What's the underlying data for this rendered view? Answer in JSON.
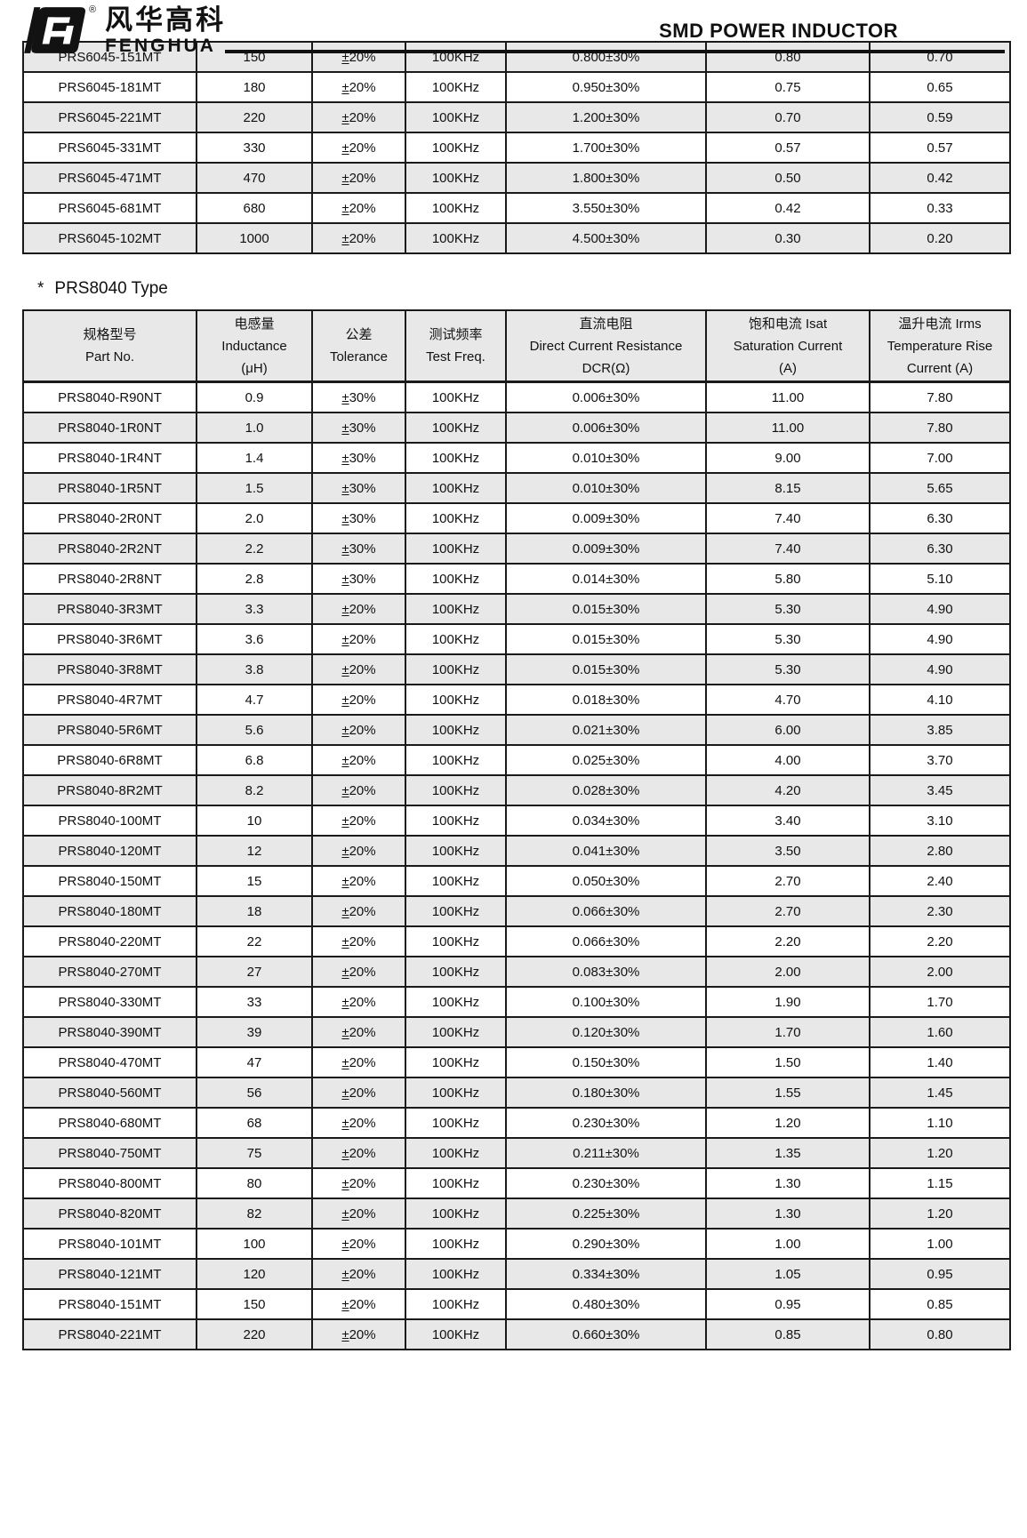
{
  "header": {
    "brand_cn": "风华高科",
    "brand_en": "FENGHUA",
    "registered": "®",
    "title": "SMD POWER INDUCTOR"
  },
  "section": {
    "marker": "*",
    "title": "PRS8040 Type"
  },
  "prs6045": {
    "rows": [
      [
        "PRS6045-151MT",
        "150",
        "±20%",
        "100KHz",
        "0.800±30%",
        "0.80",
        "0.70"
      ],
      [
        "PRS6045-181MT",
        "180",
        "±20%",
        "100KHz",
        "0.950±30%",
        "0.75",
        "0.65"
      ],
      [
        "PRS6045-221MT",
        "220",
        "±20%",
        "100KHz",
        "1.200±30%",
        "0.70",
        "0.59"
      ],
      [
        "PRS6045-331MT",
        "330",
        "±20%",
        "100KHz",
        "1.700±30%",
        "0.57",
        "0.57"
      ],
      [
        "PRS6045-471MT",
        "470",
        "±20%",
        "100KHz",
        "1.800±30%",
        "0.50",
        "0.42"
      ],
      [
        "PRS6045-681MT",
        "680",
        "±20%",
        "100KHz",
        "3.550±30%",
        "0.42",
        "0.33"
      ],
      [
        "PRS6045-102MT",
        "1000",
        "±20%",
        "100KHz",
        "4.500±30%",
        "0.30",
        "0.20"
      ]
    ]
  },
  "prs8040": {
    "columns": [
      {
        "cn": "规格型号",
        "en": "Part No.",
        "sub": ""
      },
      {
        "cn": "电感量",
        "en": "Inductance",
        "sub": "(μH)"
      },
      {
        "cn": "公差",
        "en": "Tolerance",
        "sub": ""
      },
      {
        "cn": "测试频率",
        "en": "Test Freq.",
        "sub": ""
      },
      {
        "cn": "直流电阻",
        "en": "Direct Current Resistance",
        "sub": "DCR(Ω)"
      },
      {
        "cn": "饱和电流  Isat",
        "en": "Saturation Current",
        "sub": "(A)"
      },
      {
        "cn": "温升电流  Irms",
        "en": "Temperature Rise",
        "sub": "Current (A)"
      }
    ],
    "rows": [
      [
        "PRS8040-R90NT",
        "0.9",
        "±30%",
        "100KHz",
        "0.006±30%",
        "11.00",
        "7.80"
      ],
      [
        "PRS8040-1R0NT",
        "1.0",
        "±30%",
        "100KHz",
        "0.006±30%",
        "11.00",
        "7.80"
      ],
      [
        "PRS8040-1R4NT",
        "1.4",
        "±30%",
        "100KHz",
        "0.010±30%",
        "9.00",
        "7.00"
      ],
      [
        "PRS8040-1R5NT",
        "1.5",
        "±30%",
        "100KHz",
        "0.010±30%",
        "8.15",
        "5.65"
      ],
      [
        "PRS8040-2R0NT",
        "2.0",
        "±30%",
        "100KHz",
        "0.009±30%",
        "7.40",
        "6.30"
      ],
      [
        "PRS8040-2R2NT",
        "2.2",
        "±30%",
        "100KHz",
        "0.009±30%",
        "7.40",
        "6.30"
      ],
      [
        "PRS8040-2R8NT",
        "2.8",
        "±30%",
        "100KHz",
        "0.014±30%",
        "5.80",
        "5.10"
      ],
      [
        "PRS8040-3R3MT",
        "3.3",
        "±20%",
        "100KHz",
        "0.015±30%",
        "5.30",
        "4.90"
      ],
      [
        "PRS8040-3R6MT",
        "3.6",
        "±20%",
        "100KHz",
        "0.015±30%",
        "5.30",
        "4.90"
      ],
      [
        "PRS8040-3R8MT",
        "3.8",
        "±20%",
        "100KHz",
        "0.015±30%",
        "5.30",
        "4.90"
      ],
      [
        "PRS8040-4R7MT",
        "4.7",
        "±20%",
        "100KHz",
        "0.018±30%",
        "4.70",
        "4.10"
      ],
      [
        "PRS8040-5R6MT",
        "5.6",
        "±20%",
        "100KHz",
        "0.021±30%",
        "6.00",
        "3.85"
      ],
      [
        "PRS8040-6R8MT",
        "6.8",
        "±20%",
        "100KHz",
        "0.025±30%",
        "4.00",
        "3.70"
      ],
      [
        "PRS8040-8R2MT",
        "8.2",
        "±20%",
        "100KHz",
        "0.028±30%",
        "4.20",
        "3.45"
      ],
      [
        "PRS8040-100MT",
        "10",
        "±20%",
        "100KHz",
        "0.034±30%",
        "3.40",
        "3.10"
      ],
      [
        "PRS8040-120MT",
        "12",
        "±20%",
        "100KHz",
        "0.041±30%",
        "3.50",
        "2.80"
      ],
      [
        "PRS8040-150MT",
        "15",
        "±20%",
        "100KHz",
        "0.050±30%",
        "2.70",
        "2.40"
      ],
      [
        "PRS8040-180MT",
        "18",
        "±20%",
        "100KHz",
        "0.066±30%",
        "2.70",
        "2.30"
      ],
      [
        "PRS8040-220MT",
        "22",
        "±20%",
        "100KHz",
        "0.066±30%",
        "2.20",
        "2.20"
      ],
      [
        "PRS8040-270MT",
        "27",
        "±20%",
        "100KHz",
        "0.083±30%",
        "2.00",
        "2.00"
      ],
      [
        "PRS8040-330MT",
        "33",
        "±20%",
        "100KHz",
        "0.100±30%",
        "1.90",
        "1.70"
      ],
      [
        "PRS8040-390MT",
        "39",
        "±20%",
        "100KHz",
        "0.120±30%",
        "1.70",
        "1.60"
      ],
      [
        "PRS8040-470MT",
        "47",
        "±20%",
        "100KHz",
        "0.150±30%",
        "1.50",
        "1.40"
      ],
      [
        "PRS8040-560MT",
        "56",
        "±20%",
        "100KHz",
        "0.180±30%",
        "1.55",
        "1.45"
      ],
      [
        "PRS8040-680MT",
        "68",
        "±20%",
        "100KHz",
        "0.230±30%",
        "1.20",
        "1.10"
      ],
      [
        "PRS8040-750MT",
        "75",
        "±20%",
        "100KHz",
        "0.211±30%",
        "1.35",
        "1.20"
      ],
      [
        "PRS8040-800MT",
        "80",
        "±20%",
        "100KHz",
        "0.230±30%",
        "1.30",
        "1.15"
      ],
      [
        "PRS8040-820MT",
        "82",
        "±20%",
        "100KHz",
        "0.225±30%",
        "1.30",
        "1.20"
      ],
      [
        "PRS8040-101MT",
        "100",
        "±20%",
        "100KHz",
        "0.290±30%",
        "1.00",
        "1.00"
      ],
      [
        "PRS8040-121MT",
        "120",
        "±20%",
        "100KHz",
        "0.334±30%",
        "1.05",
        "0.95"
      ],
      [
        "PRS8040-151MT",
        "150",
        "±20%",
        "100KHz",
        "0.480±30%",
        "0.95",
        "0.85"
      ],
      [
        "PRS8040-221MT",
        "220",
        "±20%",
        "100KHz",
        "0.660±30%",
        "0.85",
        "0.80"
      ]
    ]
  }
}
